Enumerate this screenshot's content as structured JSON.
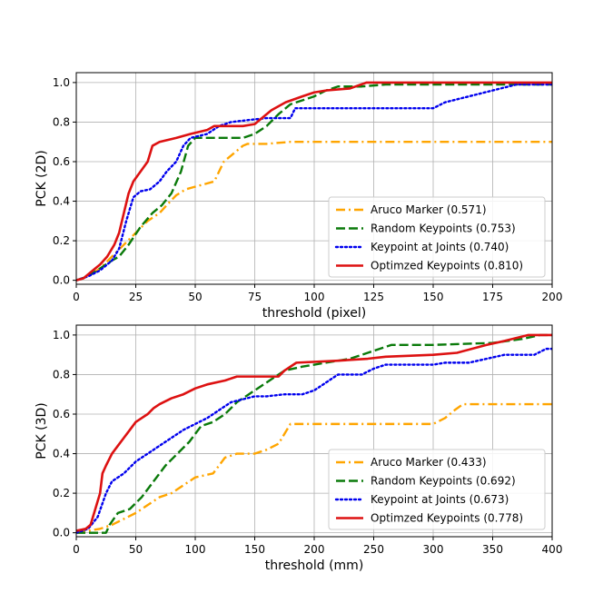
{
  "chart_data": [
    {
      "type": "line",
      "xlabel": "threshold (pixel)",
      "ylabel": "PCK (2D)",
      "xlim": [
        0,
        200
      ],
      "ylim": [
        -0.02,
        1.05
      ],
      "xticks": [
        "0",
        "25",
        "50",
        "75",
        "100",
        "125",
        "150",
        "175",
        "200"
      ],
      "yticks": [
        "0.0",
        "0.2",
        "0.4",
        "0.6",
        "0.8",
        "1.0"
      ],
      "grid": true,
      "legend_position": "lower-right",
      "series": [
        {
          "name": "Aruco Marker (0.571)",
          "color": "#FFA500",
          "style": "dashdot",
          "points": [
            [
              0,
              0
            ],
            [
              5,
              0.02
            ],
            [
              10,
              0.06
            ],
            [
              15,
              0.12
            ],
            [
              20,
              0.18
            ],
            [
              25,
              0.24
            ],
            [
              30,
              0.3
            ],
            [
              35,
              0.34
            ],
            [
              38,
              0.38
            ],
            [
              42,
              0.43
            ],
            [
              46,
              0.46
            ],
            [
              52,
              0.48
            ],
            [
              58,
              0.5
            ],
            [
              60,
              0.55
            ],
            [
              62,
              0.6
            ],
            [
              66,
              0.64
            ],
            [
              70,
              0.68
            ],
            [
              72,
              0.69
            ],
            [
              80,
              0.69
            ],
            [
              90,
              0.7
            ],
            [
              100,
              0.7
            ],
            [
              150,
              0.7
            ],
            [
              200,
              0.7
            ]
          ]
        },
        {
          "name": "Random Keypoints (0.753)",
          "color": "#0A7A0A",
          "style": "dashed",
          "points": [
            [
              0,
              0
            ],
            [
              5,
              0.02
            ],
            [
              10,
              0.06
            ],
            [
              15,
              0.1
            ],
            [
              18,
              0.12
            ],
            [
              22,
              0.18
            ],
            [
              27,
              0.27
            ],
            [
              32,
              0.34
            ],
            [
              36,
              0.38
            ],
            [
              40,
              0.44
            ],
            [
              44,
              0.55
            ],
            [
              47,
              0.68
            ],
            [
              50,
              0.72
            ],
            [
              60,
              0.72
            ],
            [
              70,
              0.72
            ],
            [
              75,
              0.74
            ],
            [
              80,
              0.78
            ],
            [
              85,
              0.84
            ],
            [
              90,
              0.89
            ],
            [
              95,
              0.91
            ],
            [
              100,
              0.93
            ],
            [
              105,
              0.96
            ],
            [
              110,
              0.98
            ],
            [
              120,
              0.98
            ],
            [
              130,
              0.99
            ],
            [
              200,
              0.99
            ]
          ]
        },
        {
          "name": "Keypoint at Joints (0.740)",
          "color": "#0000EE",
          "style": "dotted",
          "points": [
            [
              0,
              0
            ],
            [
              5,
              0.02
            ],
            [
              10,
              0.05
            ],
            [
              15,
              0.1
            ],
            [
              18,
              0.16
            ],
            [
              21,
              0.3
            ],
            [
              24,
              0.42
            ],
            [
              27,
              0.45
            ],
            [
              31,
              0.46
            ],
            [
              35,
              0.5
            ],
            [
              38,
              0.55
            ],
            [
              42,
              0.6
            ],
            [
              45,
              0.68
            ],
            [
              48,
              0.72
            ],
            [
              55,
              0.74
            ],
            [
              60,
              0.78
            ],
            [
              65,
              0.8
            ],
            [
              72,
              0.81
            ],
            [
              80,
              0.82
            ],
            [
              90,
              0.82
            ],
            [
              92,
              0.87
            ],
            [
              110,
              0.87
            ],
            [
              150,
              0.87
            ],
            [
              155,
              0.9
            ],
            [
              175,
              0.96
            ],
            [
              185,
              0.99
            ],
            [
              200,
              0.99
            ]
          ]
        },
        {
          "name": "Optimzed Keypoints (0.810)",
          "color": "#DD1111",
          "style": "solid",
          "points": [
            [
              0,
              0
            ],
            [
              3,
              0.01
            ],
            [
              6,
              0.04
            ],
            [
              10,
              0.08
            ],
            [
              13,
              0.12
            ],
            [
              16,
              0.18
            ],
            [
              18,
              0.24
            ],
            [
              20,
              0.34
            ],
            [
              22,
              0.44
            ],
            [
              24,
              0.5
            ],
            [
              27,
              0.55
            ],
            [
              30,
              0.6
            ],
            [
              32,
              0.68
            ],
            [
              35,
              0.7
            ],
            [
              42,
              0.72
            ],
            [
              48,
              0.74
            ],
            [
              55,
              0.76
            ],
            [
              58,
              0.78
            ],
            [
              70,
              0.78
            ],
            [
              75,
              0.79
            ],
            [
              82,
              0.86
            ],
            [
              88,
              0.9
            ],
            [
              95,
              0.93
            ],
            [
              100,
              0.95
            ],
            [
              105,
              0.96
            ],
            [
              115,
              0.97
            ],
            [
              122,
              1.0
            ],
            [
              200,
              1.0
            ]
          ]
        }
      ]
    },
    {
      "type": "line",
      "xlabel": "threshold (mm)",
      "ylabel": "PCK (3D)",
      "xlim": [
        0,
        400
      ],
      "ylim": [
        -0.02,
        1.05
      ],
      "xticks": [
        "0",
        "50",
        "100",
        "150",
        "200",
        "250",
        "300",
        "350",
        "400"
      ],
      "yticks": [
        "0.0",
        "0.2",
        "0.4",
        "0.6",
        "0.8",
        "1.0"
      ],
      "grid": true,
      "legend_position": "lower-right",
      "series": [
        {
          "name": "Aruco Marker (0.433)",
          "color": "#FFA500",
          "style": "dashdot",
          "points": [
            [
              0,
              0
            ],
            [
              10,
              0.01
            ],
            [
              20,
              0.02
            ],
            [
              30,
              0.04
            ],
            [
              40,
              0.07
            ],
            [
              50,
              0.1
            ],
            [
              60,
              0.14
            ],
            [
              70,
              0.18
            ],
            [
              80,
              0.2
            ],
            [
              90,
              0.24
            ],
            [
              100,
              0.28
            ],
            [
              115,
              0.3
            ],
            [
              120,
              0.34
            ],
            [
              125,
              0.38
            ],
            [
              135,
              0.4
            ],
            [
              150,
              0.4
            ],
            [
              160,
              0.42
            ],
            [
              170,
              0.45
            ],
            [
              175,
              0.5
            ],
            [
              180,
              0.55
            ],
            [
              200,
              0.55
            ],
            [
              240,
              0.55
            ],
            [
              280,
              0.55
            ],
            [
              300,
              0.55
            ],
            [
              310,
              0.58
            ],
            [
              318,
              0.62
            ],
            [
              325,
              0.65
            ],
            [
              400,
              0.65
            ]
          ]
        },
        {
          "name": "Random Keypoints (0.692)",
          "color": "#0A7A0A",
          "style": "dashed",
          "points": [
            [
              0,
              0
            ],
            [
              10,
              0
            ],
            [
              20,
              0
            ],
            [
              25,
              0
            ],
            [
              28,
              0.04
            ],
            [
              35,
              0.1
            ],
            [
              45,
              0.12
            ],
            [
              55,
              0.18
            ],
            [
              65,
              0.26
            ],
            [
              75,
              0.34
            ],
            [
              85,
              0.4
            ],
            [
              95,
              0.46
            ],
            [
              100,
              0.5
            ],
            [
              105,
              0.54
            ],
            [
              115,
              0.56
            ],
            [
              125,
              0.6
            ],
            [
              135,
              0.66
            ],
            [
              145,
              0.7
            ],
            [
              155,
              0.74
            ],
            [
              165,
              0.78
            ],
            [
              175,
              0.82
            ],
            [
              190,
              0.84
            ],
            [
              210,
              0.86
            ],
            [
              230,
              0.88
            ],
            [
              245,
              0.91
            ],
            [
              255,
              0.93
            ],
            [
              265,
              0.95
            ],
            [
              300,
              0.95
            ],
            [
              350,
              0.96
            ],
            [
              375,
              0.98
            ],
            [
              390,
              1.0
            ],
            [
              400,
              1.0
            ]
          ]
        },
        {
          "name": "Keypoint at Joints (0.673)",
          "color": "#0000EE",
          "style": "dotted",
          "points": [
            [
              0,
              0
            ],
            [
              10,
              0.02
            ],
            [
              18,
              0.08
            ],
            [
              25,
              0.2
            ],
            [
              30,
              0.26
            ],
            [
              40,
              0.3
            ],
            [
              50,
              0.36
            ],
            [
              60,
              0.4
            ],
            [
              70,
              0.44
            ],
            [
              80,
              0.48
            ],
            [
              90,
              0.52
            ],
            [
              100,
              0.55
            ],
            [
              110,
              0.58
            ],
            [
              120,
              0.62
            ],
            [
              130,
              0.66
            ],
            [
              150,
              0.69
            ],
            [
              160,
              0.69
            ],
            [
              175,
              0.7
            ],
            [
              190,
              0.7
            ],
            [
              200,
              0.72
            ],
            [
              210,
              0.76
            ],
            [
              220,
              0.8
            ],
            [
              240,
              0.8
            ],
            [
              250,
              0.83
            ],
            [
              260,
              0.85
            ],
            [
              300,
              0.85
            ],
            [
              310,
              0.86
            ],
            [
              330,
              0.86
            ],
            [
              345,
              0.88
            ],
            [
              360,
              0.9
            ],
            [
              385,
              0.9
            ],
            [
              395,
              0.93
            ],
            [
              400,
              0.93
            ]
          ]
        },
        {
          "name": "Optimzed Keypoints (0.778)",
          "color": "#DD1111",
          "style": "solid",
          "points": [
            [
              0,
              0.01
            ],
            [
              8,
              0.02
            ],
            [
              12,
              0.04
            ],
            [
              15,
              0.1
            ],
            [
              18,
              0.16
            ],
            [
              20,
              0.2
            ],
            [
              22,
              0.3
            ],
            [
              25,
              0.34
            ],
            [
              30,
              0.4
            ],
            [
              35,
              0.44
            ],
            [
              40,
              0.48
            ],
            [
              45,
              0.52
            ],
            [
              50,
              0.56
            ],
            [
              55,
              0.58
            ],
            [
              60,
              0.6
            ],
            [
              65,
              0.63
            ],
            [
              70,
              0.65
            ],
            [
              80,
              0.68
            ],
            [
              90,
              0.7
            ],
            [
              100,
              0.73
            ],
            [
              110,
              0.75
            ],
            [
              125,
              0.77
            ],
            [
              135,
              0.79
            ],
            [
              150,
              0.79
            ],
            [
              170,
              0.79
            ],
            [
              175,
              0.82
            ],
            [
              185,
              0.86
            ],
            [
              220,
              0.87
            ],
            [
              245,
              0.88
            ],
            [
              260,
              0.89
            ],
            [
              300,
              0.9
            ],
            [
              320,
              0.91
            ],
            [
              345,
              0.95
            ],
            [
              360,
              0.97
            ],
            [
              380,
              1.0
            ],
            [
              400,
              1.0
            ]
          ]
        }
      ]
    }
  ]
}
